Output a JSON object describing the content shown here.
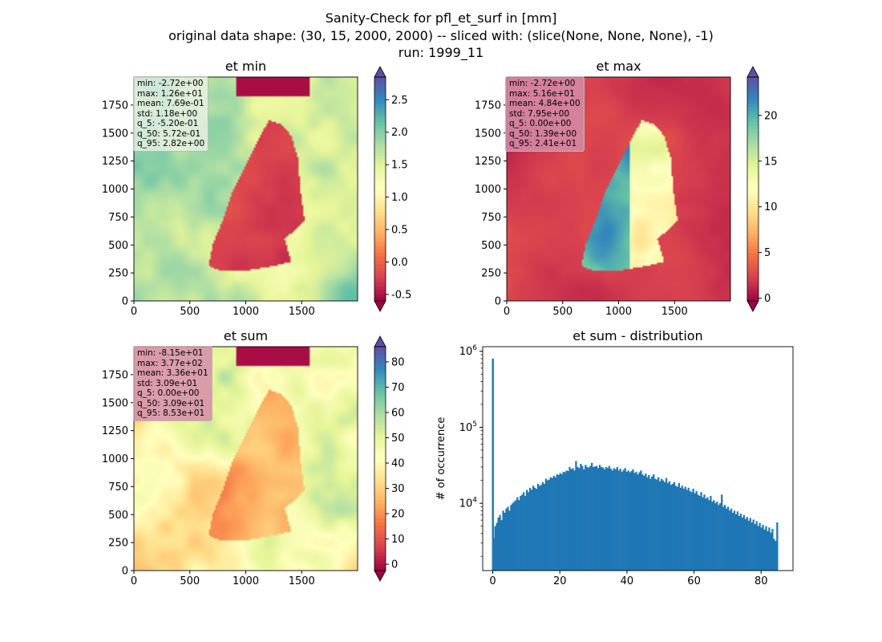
{
  "suptitle": {
    "line1": "Sanity-Check for pfl_et_surf in [mm]",
    "line2": "original data shape: (30, 15, 2000, 2000) -- sliced with: (slice(None, None, None), -1)",
    "line3": "run: 1999_11"
  },
  "colors": {
    "hist_bar": "#1f77b4",
    "cmap_spectral": [
      "#9e0142",
      "#d53e4f",
      "#f46d43",
      "#fdae61",
      "#fee08b",
      "#ffffbf",
      "#e6f598",
      "#abdda4",
      "#66c2a5",
      "#3288bd",
      "#5e4fa2"
    ]
  },
  "panels": [
    {
      "id": "et-min",
      "title": "et min",
      "xticks": [
        "0",
        "500",
        "1000",
        "1500"
      ],
      "yticks": [
        "0",
        "250",
        "500",
        "750",
        "1000",
        "1250",
        "1500",
        "1750"
      ],
      "cbar_ticks": [
        "-0.5",
        "0.0",
        "0.5",
        "1.0",
        "1.5",
        "2.0",
        "2.5"
      ],
      "cbar_range": [
        -0.6,
        2.85
      ],
      "stats": [
        "min: -2.72e+00",
        "max: 1.26e+01",
        "mean: 7.69e-01",
        "std: 1.18e+00",
        "q_5: -5.20e-01",
        "q_50: 5.72e-01",
        "q_95: 2.82e+00"
      ]
    },
    {
      "id": "et-max",
      "title": "et max",
      "xticks": [
        "0",
        "500",
        "1000",
        "1500"
      ],
      "yticks": [
        "0",
        "250",
        "500",
        "750",
        "1000",
        "1250",
        "1500",
        "1750"
      ],
      "cbar_ticks": [
        "0",
        "5",
        "10",
        "15",
        "20"
      ],
      "cbar_range": [
        -0.3,
        24.2
      ],
      "stats": [
        "min: -2.72e+00",
        "max: 5.16e+01",
        "mean: 4.84e+00",
        "std: 7.95e+00",
        "q_5: 0.00e+00",
        "q_50: 1.39e+00",
        "q_95: 2.41e+01"
      ]
    },
    {
      "id": "et-sum",
      "title": "et sum",
      "xticks": [
        "0",
        "500",
        "1000",
        "1500"
      ],
      "yticks": [
        "0",
        "250",
        "500",
        "750",
        "1000",
        "1250",
        "1500",
        "1750"
      ],
      "cbar_ticks": [
        "0",
        "10",
        "20",
        "30",
        "40",
        "50",
        "60",
        "70",
        "80"
      ],
      "cbar_range": [
        -2.5,
        86
      ],
      "stats": [
        "min: -8.15e+01",
        "max: 3.77e+02",
        "mean: 3.36e+01",
        "std: 3.09e+01",
        "q_5: 0.00e+00",
        "q_50: 3.09e+01",
        "q_95: 8.53e+01"
      ]
    }
  ],
  "chart_data": {
    "type": "bar",
    "title": "et sum - distribution",
    "xlabel": "",
    "ylabel": "# of occurrence",
    "yscale": "log",
    "xlim": [
      -3,
      89.5
    ],
    "ylim": [
      1300,
      1150000
    ],
    "xticks": [
      "0",
      "20",
      "40",
      "60",
      "80"
    ],
    "yticks": [
      "10^4",
      "10^5",
      "10^6"
    ],
    "bin_range": [
      0,
      85
    ],
    "spike": {
      "x": 0,
      "y": 800000
    },
    "values": [
      3500,
      5000,
      5500,
      6500,
      7000,
      6000,
      8000,
      7500,
      8500,
      9000,
      8000,
      9500,
      10000,
      10500,
      11000,
      12000,
      11000,
      12500,
      13000,
      14000,
      12500,
      15000,
      14000,
      16000,
      15000,
      17000,
      16000,
      15500,
      18000,
      17000,
      17500,
      19000,
      18000,
      21000,
      20000,
      20500,
      22000,
      21500,
      23000,
      22000,
      24000,
      23500,
      25000,
      24000,
      26000,
      25500,
      27000,
      26500,
      30000,
      28000,
      29000,
      27000,
      36000,
      30000,
      29000,
      33000,
      31000,
      28000,
      32000,
      30000,
      29500,
      31000,
      34000,
      30000,
      30500,
      31000,
      29000,
      32000,
      30000,
      29500,
      28000,
      30000,
      29000,
      31000,
      28500,
      27000,
      29000,
      28000,
      30000,
      27000,
      28500,
      26000,
      27500,
      29000,
      26000,
      27000,
      25500,
      26500,
      28000,
      25000,
      26000,
      24000,
      25500,
      27000,
      24000,
      23000,
      24500,
      22000,
      23500,
      21000,
      22500,
      24000,
      21000,
      20500,
      22000,
      19500,
      21000,
      20000,
      19000,
      21500,
      18500,
      19500,
      17500,
      18000,
      19000,
      17000,
      16500,
      18500,
      16000,
      17000,
      15500,
      16500,
      15000,
      16000,
      14500,
      14000,
      15500,
      13500,
      14500,
      13000,
      12500,
      14000,
      12000,
      13000,
      11500,
      12000,
      11000,
      12500,
      10500,
      11000,
      10000,
      10500,
      9500,
      10000,
      13000,
      9000,
      9500,
      8500,
      9000,
      8000,
      8500,
      7500,
      8000,
      7200,
      7800,
      6800,
      7300,
      6500,
      7000,
      6200,
      6600,
      5900,
      6400,
      5600,
      6100,
      5300,
      5800,
      5000,
      5500,
      4800,
      5200,
      4500,
      5000,
      4300,
      4800,
      4100,
      4600,
      3400,
      3200,
      5600
    ]
  }
}
